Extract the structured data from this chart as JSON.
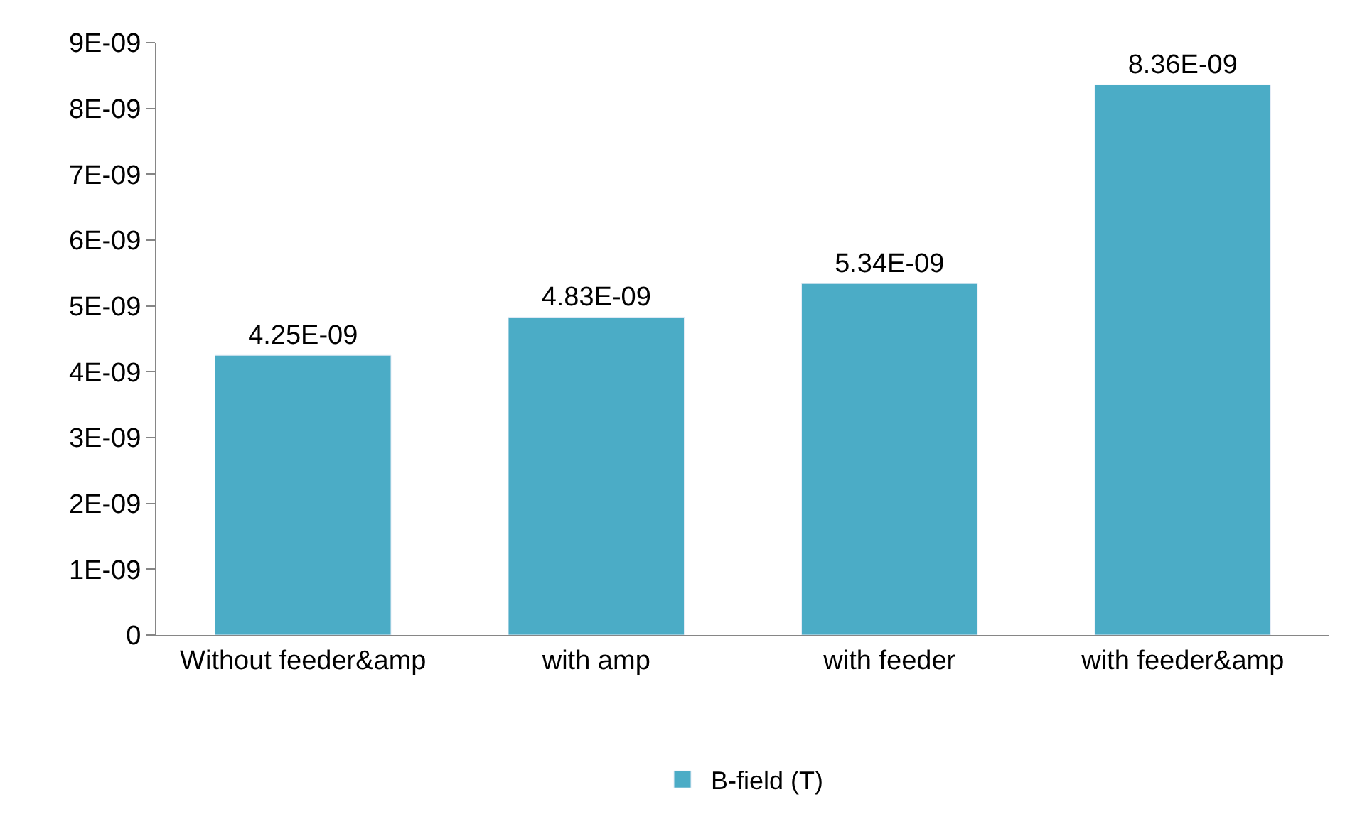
{
  "chart_data": {
    "type": "bar",
    "categories": [
      "Without feeder&amp",
      "with amp",
      "with feeder",
      "with feeder&amp"
    ],
    "series": [
      {
        "name": "B-field (T)",
        "color": "#4bacc6",
        "values": [
          4.25e-09,
          4.83e-09,
          5.34e-09,
          8.36e-09
        ],
        "value_labels": [
          "4.25E-09",
          "4.83E-09",
          "5.34E-09",
          "8.36E-09"
        ]
      }
    ],
    "ylim": [
      0,
      9e-09
    ],
    "yticks": [
      0,
      {
        "value": 1e-09,
        "label": "1E-09"
      },
      {
        "value": 2e-09,
        "label": "2E-09"
      },
      {
        "value": 3e-09,
        "label": "3E-09"
      },
      {
        "value": 4e-09,
        "label": "4E-09"
      },
      {
        "value": 5e-09,
        "label": "5E-09"
      },
      {
        "value": 6e-09,
        "label": "6E-09"
      },
      {
        "value": 7e-09,
        "label": "7E-09"
      },
      {
        "value": 8e-09,
        "label": "8E-09"
      },
      {
        "value": 9e-09,
        "label": "9E-09"
      }
    ],
    "legend": "bottom"
  }
}
